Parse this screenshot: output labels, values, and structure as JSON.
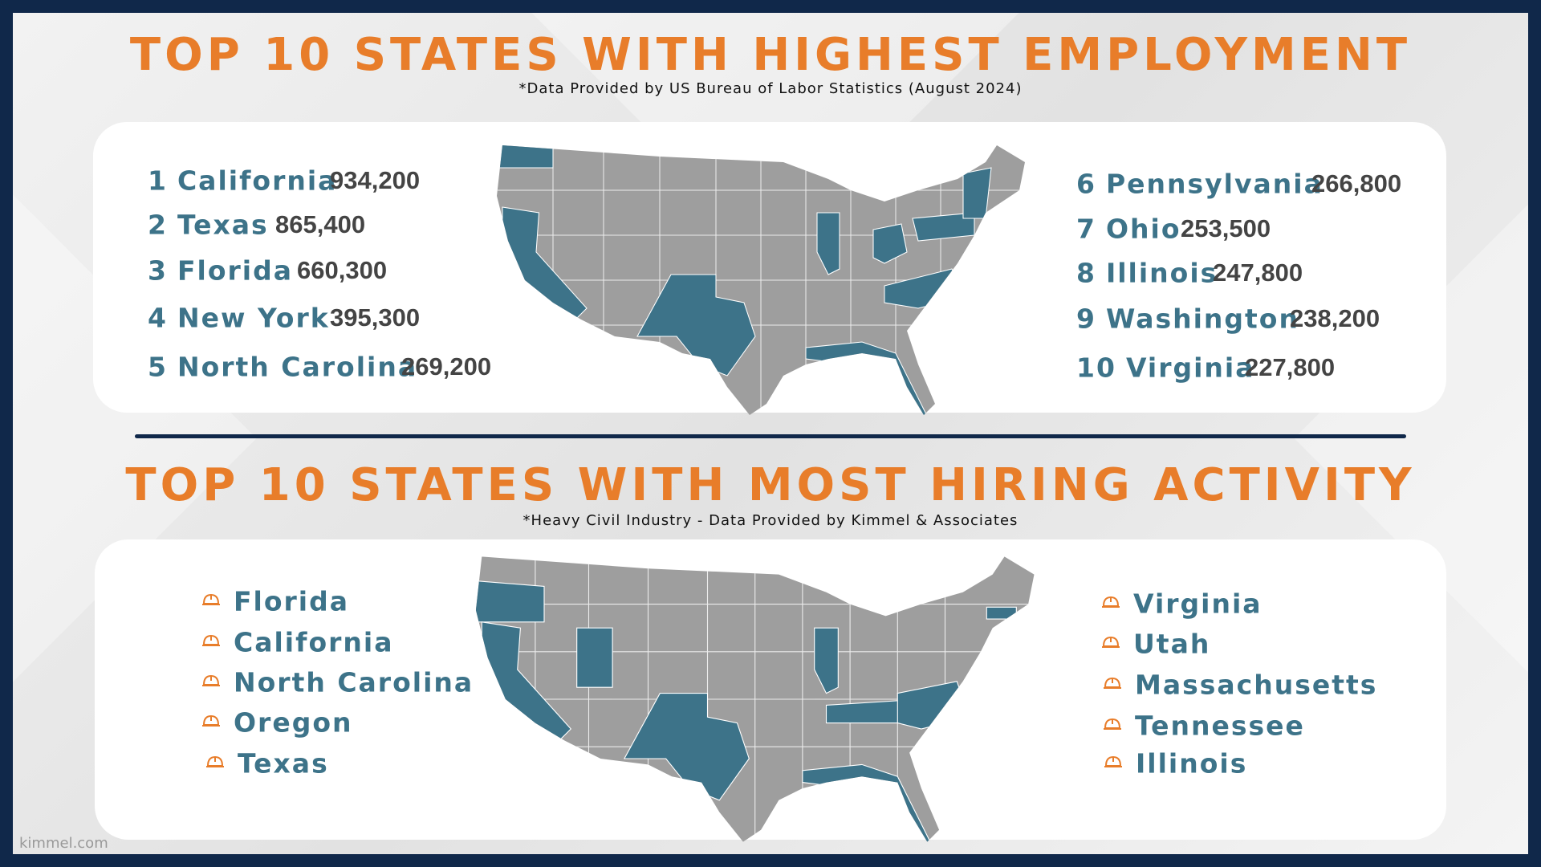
{
  "employment": {
    "title": "TOP 10 STATES WITH HIGHEST EMPLOYMENT",
    "source": "*Data Provided by US Bureau of Labor Statistics (August 2024)",
    "states": [
      {
        "rank": "1",
        "name": "California",
        "value": "934,200"
      },
      {
        "rank": "2",
        "name": "Texas",
        "value": "865,400"
      },
      {
        "rank": "3",
        "name": "Florida",
        "value": "660,300"
      },
      {
        "rank": "4",
        "name": "New York",
        "value": "395,300"
      },
      {
        "rank": "5",
        "name": "North Carolina",
        "value": "269,200"
      },
      {
        "rank": "6",
        "name": "Pennsylvania",
        "value": "266,800"
      },
      {
        "rank": "7",
        "name": "Ohio",
        "value": "253,500"
      },
      {
        "rank": "8",
        "name": "Illinois",
        "value": "247,800"
      },
      {
        "rank": "9",
        "name": "Washington",
        "value": "238,200"
      },
      {
        "rank": "10",
        "name": "Virginia",
        "value": "227,800"
      }
    ]
  },
  "hiring": {
    "title": "TOP 10 STATES WITH MOST HIRING ACTIVITY",
    "source": "*Heavy Civil Industry - Data Provided by Kimmel & Associates",
    "states": [
      "Florida",
      "California",
      "North Carolina",
      "Oregon",
      "Texas",
      "Virginia",
      "Utah",
      "Massachusetts",
      "Tennessee",
      "Illinois"
    ]
  },
  "footer": "kimmel.com"
}
